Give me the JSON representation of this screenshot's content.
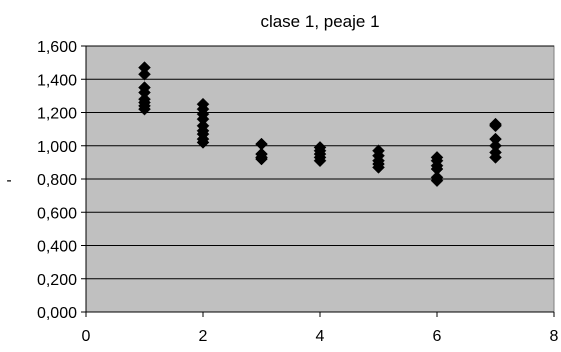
{
  "chart_data": {
    "type": "scatter",
    "title": "clase 1, peaje 1",
    "xlabel": "",
    "ylabel": "-",
    "xlim": [
      0,
      8
    ],
    "ylim": [
      0,
      1.6
    ],
    "x_ticks": [
      0,
      2,
      4,
      6,
      8
    ],
    "x_tick_labels": [
      "0",
      "2",
      "4",
      "6",
      "8"
    ],
    "y_ticks": [
      0,
      0.2,
      0.4,
      0.6,
      0.8,
      1.0,
      1.2,
      1.4,
      1.6
    ],
    "y_tick_labels": [
      "0,000",
      "0,200",
      "0,400",
      "0,600",
      "0,800",
      "1,000",
      "1,200",
      "1,400",
      "1,600"
    ],
    "grid": "horizontal",
    "legend": "none",
    "plot_background": "#c0c0c0",
    "marker_color": "#000000",
    "marker": "diamond",
    "series": [
      {
        "x": [
          1,
          1,
          1,
          1,
          1,
          1,
          1,
          1,
          2,
          2,
          2,
          2,
          2,
          2,
          2,
          2,
          2,
          3,
          3,
          3,
          3,
          4,
          4,
          4,
          4,
          4,
          5,
          5,
          5,
          5,
          5,
          6,
          6,
          6,
          6,
          6,
          6,
          7,
          7,
          7,
          7,
          7,
          7
        ],
        "y": [
          1.47,
          1.43,
          1.35,
          1.32,
          1.28,
          1.26,
          1.24,
          1.22,
          1.25,
          1.22,
          1.19,
          1.16,
          1.12,
          1.09,
          1.07,
          1.04,
          1.02,
          1.01,
          0.95,
          0.93,
          0.92,
          0.99,
          0.97,
          0.95,
          0.93,
          0.91,
          0.97,
          0.94,
          0.91,
          0.89,
          0.87,
          0.93,
          0.91,
          0.88,
          0.86,
          0.81,
          0.79,
          1.13,
          1.12,
          1.04,
          1.0,
          0.96,
          0.93
        ]
      }
    ]
  }
}
